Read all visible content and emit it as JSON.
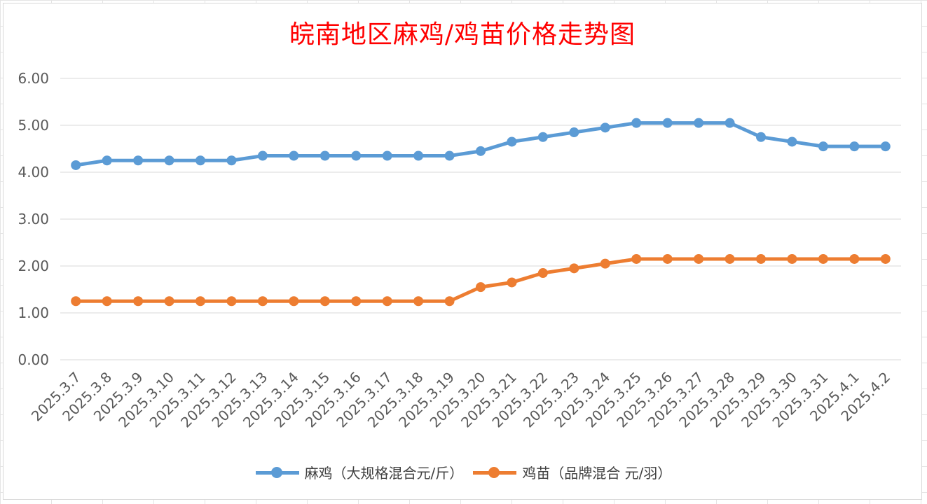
{
  "chart_data": {
    "type": "line",
    "title": "皖南地区麻鸡/鸡苗价格走势图",
    "categories": [
      "2025.3.7",
      "2025.3.8",
      "2025.3.9",
      "2025.3.10",
      "2025.3.11",
      "2025.3.12",
      "2025.3.13",
      "2025.3.14",
      "2025.3.15",
      "2025.3.16",
      "2025.3.17",
      "2025.3.18",
      "2025.3.19",
      "2025.3.20",
      "2025.3.21",
      "2025.3.22",
      "2025.3.23",
      "2025.3.24",
      "2025.3.25",
      "2025.3.26",
      "2025.3.27",
      "2025.3.28",
      "2025.3.29",
      "2025.3.30",
      "2025.3.31",
      "2025.4.1",
      "2025.4.2"
    ],
    "series": [
      {
        "name": "麻鸡（大规格混合元/斤）",
        "color": "#5b9bd5",
        "values": [
          4.15,
          4.25,
          4.25,
          4.25,
          4.25,
          4.25,
          4.35,
          4.35,
          4.35,
          4.35,
          4.35,
          4.35,
          4.35,
          4.45,
          4.65,
          4.75,
          4.85,
          4.95,
          5.05,
          5.05,
          5.05,
          5.05,
          4.75,
          4.65,
          4.55,
          4.55,
          4.55
        ]
      },
      {
        "name": "鸡苗（品牌混合 元/羽）",
        "color": "#ed7d31",
        "values": [
          1.25,
          1.25,
          1.25,
          1.25,
          1.25,
          1.25,
          1.25,
          1.25,
          1.25,
          1.25,
          1.25,
          1.25,
          1.25,
          1.55,
          1.65,
          1.85,
          1.95,
          2.05,
          2.15,
          2.15,
          2.15,
          2.15,
          2.15,
          2.15,
          2.15,
          2.15,
          2.15
        ]
      }
    ],
    "ylim": [
      0,
      6
    ],
    "yticks": [
      "0.00",
      "1.00",
      "2.00",
      "3.00",
      "4.00",
      "5.00",
      "6.00"
    ],
    "xlabel": "",
    "ylabel": "",
    "grid": true,
    "legend_position": "bottom"
  }
}
